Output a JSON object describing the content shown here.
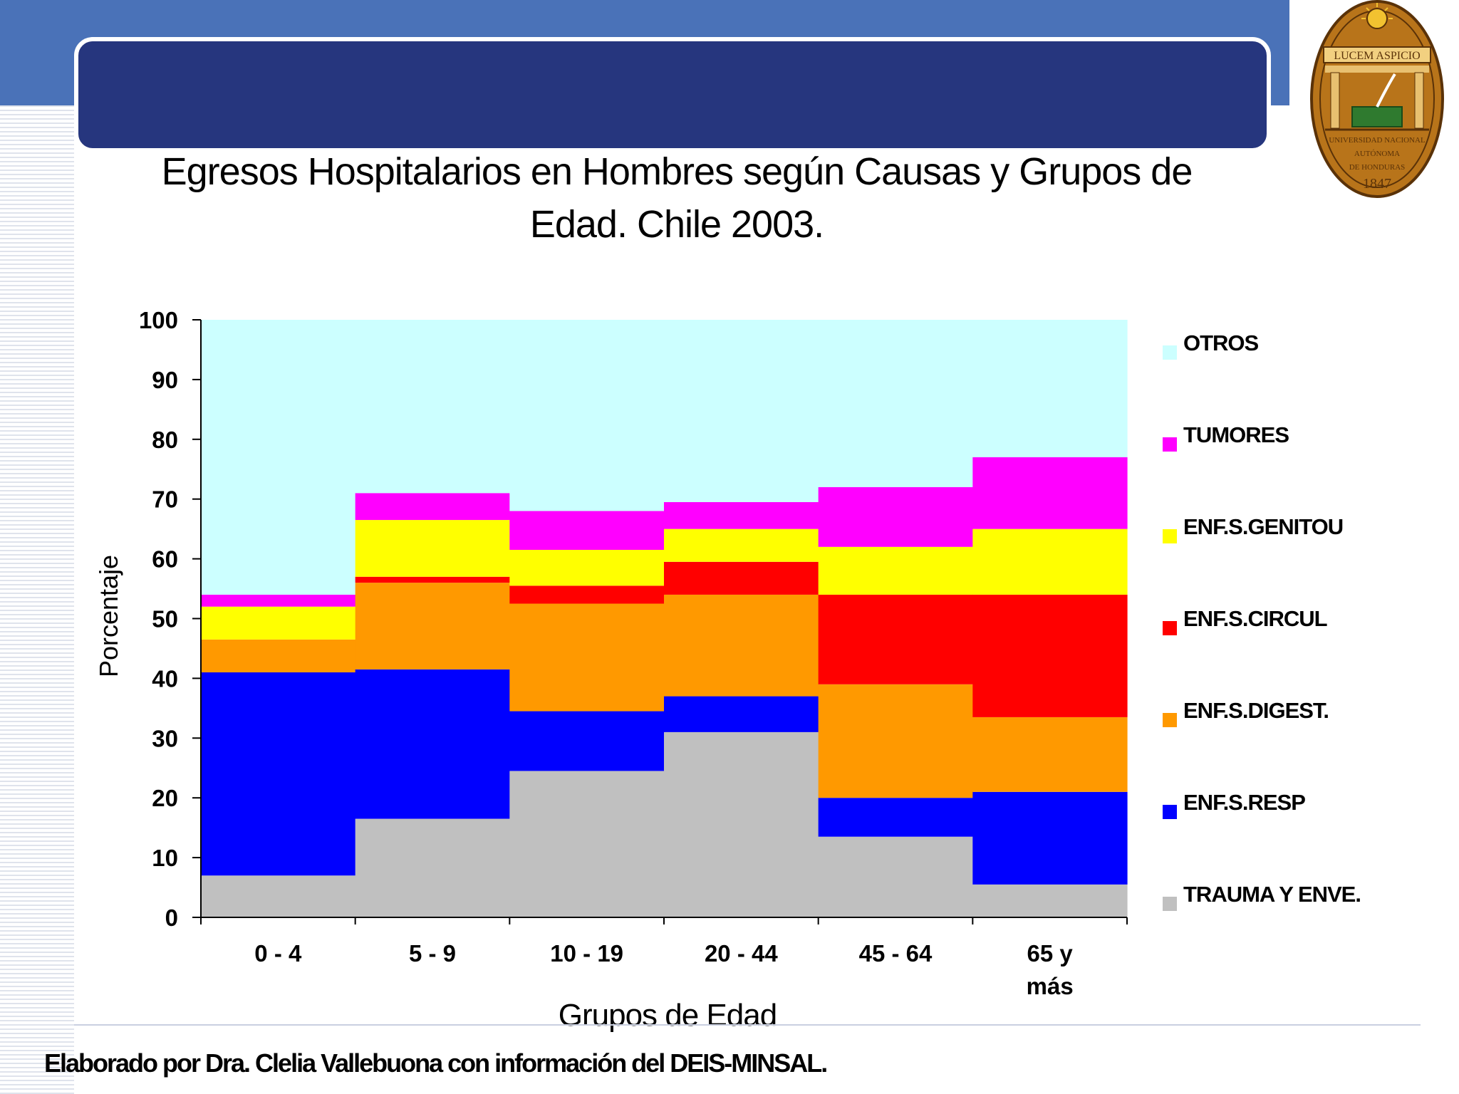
{
  "title": "Egresos Hospitalarios en Hombres según Causas y Grupos de Edad. Chile 2003.",
  "source_note": "Elaborado  por Dra. Clelia Vallebuona con información del DEIS-MINSAL.",
  "seal": {
    "motto": "LUCEM ASPICIO",
    "line1": "UNIVERSIDAD NACIONAL",
    "line2": "AUTÓNOMA",
    "line3": "DE HONDURAS",
    "year": "1847"
  },
  "colors": {
    "top_band": "#4a72b8",
    "title_bar": "#26367e"
  },
  "chart_data": {
    "type": "bar",
    "stacked": true,
    "ylabel": "Porcentaje",
    "xlabel": "Grupos de Edad",
    "ylim": [
      0,
      100
    ],
    "yticks": [
      0,
      10,
      20,
      30,
      40,
      50,
      60,
      70,
      80,
      90,
      100
    ],
    "categories": [
      [
        "0 - 4"
      ],
      [
        "5 - 9"
      ],
      [
        "10 - 19"
      ],
      [
        "20 - 44"
      ],
      [
        "45 - 64"
      ],
      [
        "65 y",
        "más"
      ]
    ],
    "series": [
      {
        "name": "TRAUMA Y ENVE.",
        "color": "#c0c0c0",
        "values": [
          7,
          16.5,
          24.5,
          31,
          13.5,
          5.5
        ]
      },
      {
        "name": "ENF.S.RESP",
        "color": "#0000ff",
        "values": [
          34,
          25,
          10,
          6,
          6.5,
          15.5
        ]
      },
      {
        "name": "ENF.S.DIGEST.",
        "color": "#ff9900",
        "values": [
          5.5,
          14.5,
          18,
          17,
          19,
          12.5
        ]
      },
      {
        "name": "ENF.S.CIRCUL",
        "color": "#ff0000",
        "values": [
          0,
          1,
          3,
          5.5,
          15,
          20.5
        ]
      },
      {
        "name": "ENF.S.GENITOU",
        "color": "#ffff00",
        "values": [
          5.5,
          9.5,
          6,
          5.5,
          8,
          11
        ]
      },
      {
        "name": "TUMORES",
        "color": "#ff00ff",
        "values": [
          2,
          4.5,
          6.5,
          4.5,
          10,
          12
        ]
      },
      {
        "name": "OTROS",
        "color": "#ccffff",
        "values": [
          46,
          29,
          32,
          30.5,
          28,
          23
        ]
      }
    ]
  }
}
